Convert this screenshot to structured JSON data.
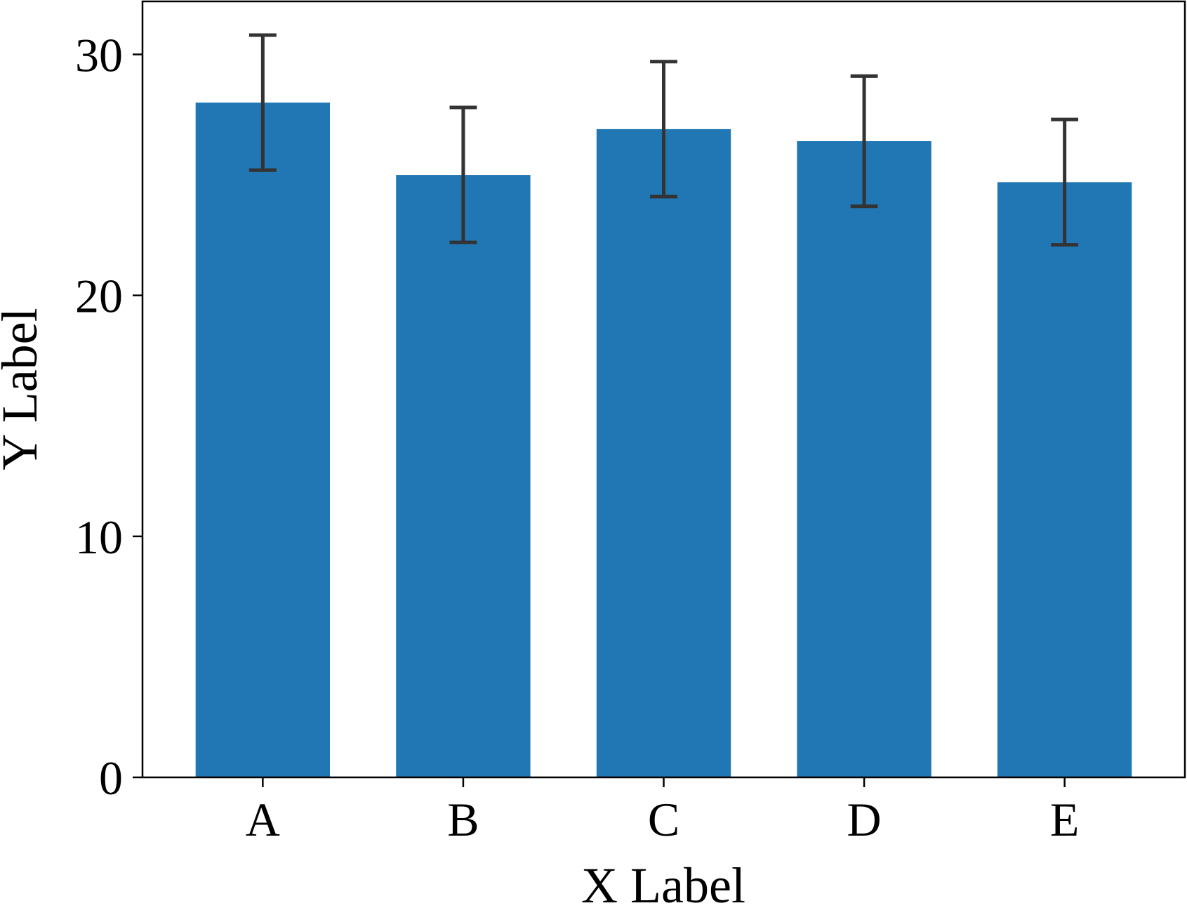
{
  "chart_data": {
    "type": "bar",
    "title": "",
    "xlabel": "X Label",
    "ylabel": "Y Label",
    "categories": [
      "A",
      "B",
      "C",
      "D",
      "E"
    ],
    "values": [
      28.0,
      25.0,
      26.9,
      26.4,
      24.7
    ],
    "errors": [
      2.8,
      2.8,
      2.8,
      2.7,
      2.6
    ],
    "ylim": [
      0,
      32.2
    ],
    "yticks": [
      0,
      10,
      20,
      30
    ],
    "grid": false,
    "legend": "none",
    "colors": {
      "bar": "#2077b4",
      "error_bar": "#333333",
      "axis": "#000000"
    }
  }
}
